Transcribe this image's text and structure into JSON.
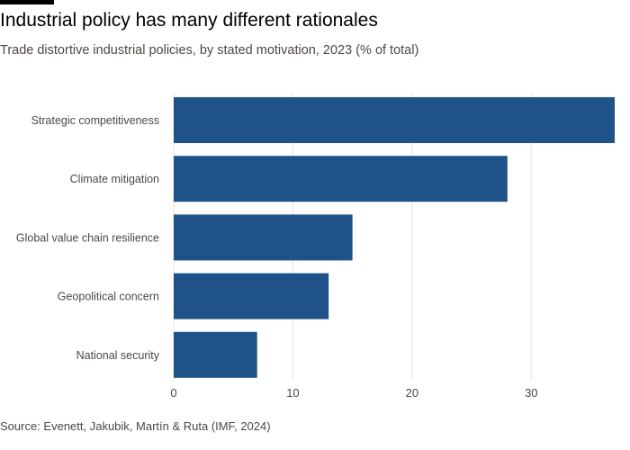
{
  "header": {
    "title": "Industrial policy has many different rationales",
    "subtitle": "Trade distortive industrial policies, by stated motivation, 2023 (% of total)"
  },
  "footer": {
    "source": "Source: Evenett, Jakubik, Martín & Ruta (IMF, 2024)"
  },
  "colors": {
    "bar": "#1f5289",
    "grid": "#e6e3e0"
  },
  "chart_data": {
    "type": "bar",
    "orientation": "horizontal",
    "title": "Industrial policy has many different rationales",
    "subtitle": "Trade distortive industrial policies, by stated motivation, 2023 (% of total)",
    "categories": [
      "Strategic competitiveness",
      "Climate mitigation",
      "Global value chain resilience",
      "Geopolitical concern",
      "National security"
    ],
    "values": [
      37,
      28,
      15,
      13,
      7
    ],
    "xlim": [
      0,
      37
    ],
    "xticks": [
      0,
      10,
      20,
      30
    ],
    "xtick_labels": [
      "0",
      "10",
      "20",
      "30"
    ],
    "grid": true
  }
}
